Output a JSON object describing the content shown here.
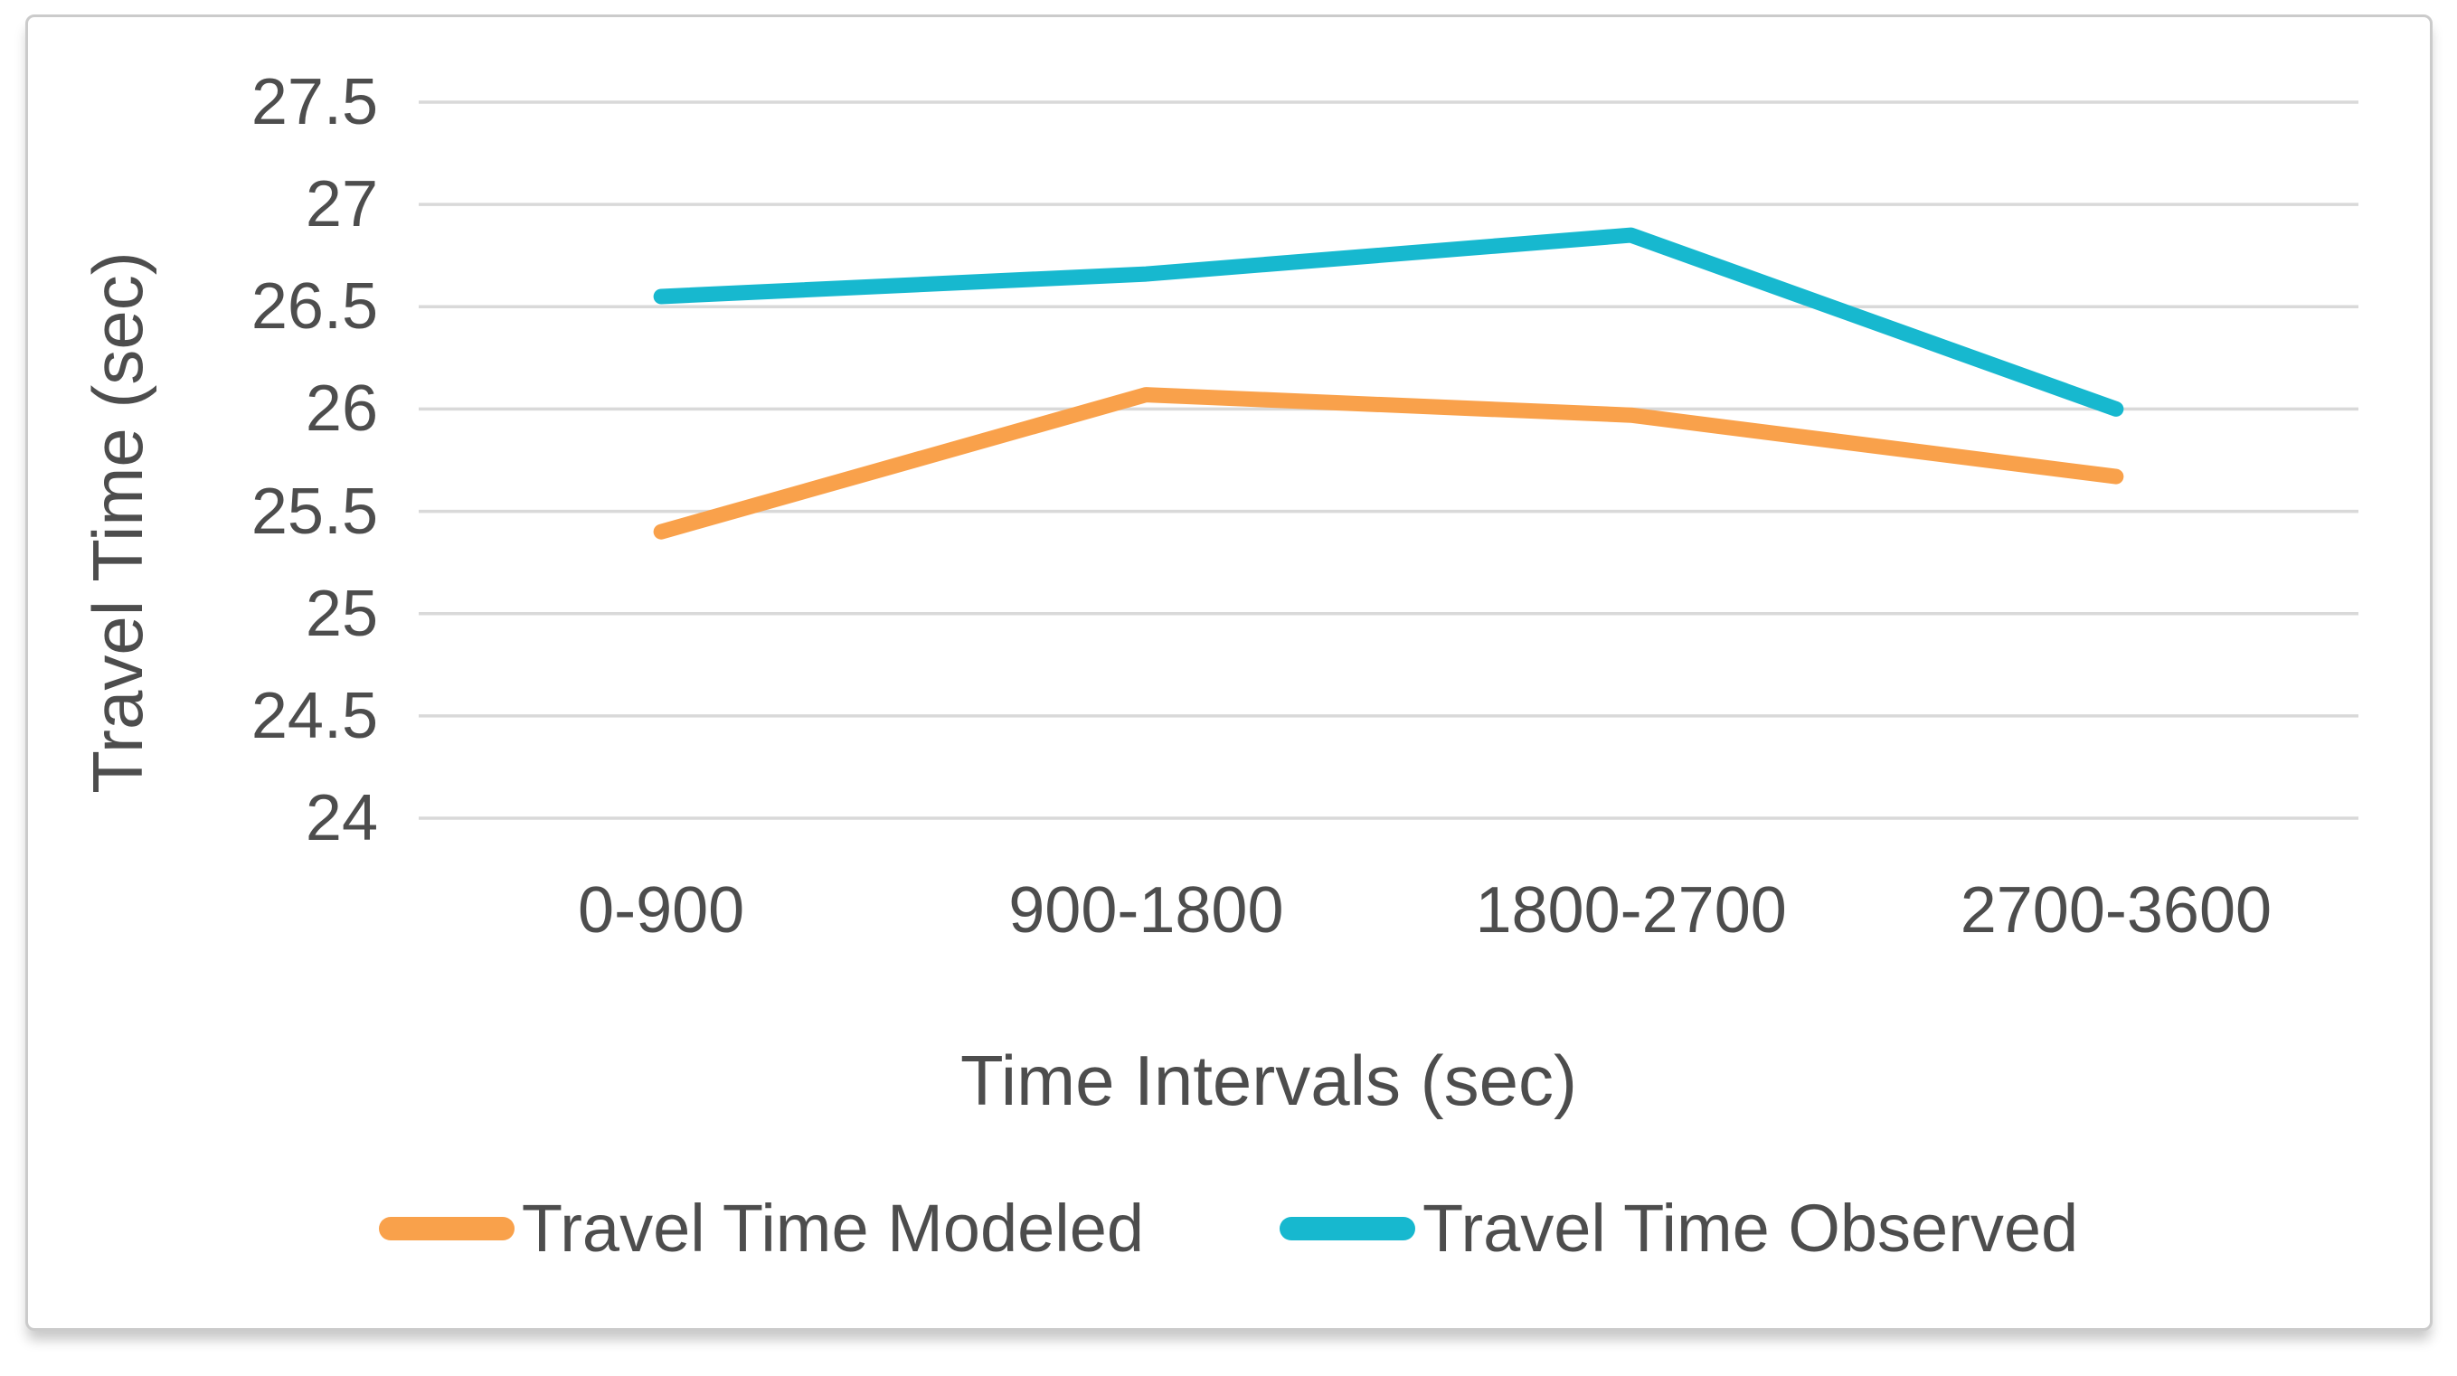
{
  "chart_data": {
    "type": "line",
    "categories": [
      "0-900",
      "900-1800",
      "1800-2700",
      "2700-3600"
    ],
    "series": [
      {
        "name": "Travel Time Modeled",
        "color": "#F9A14B",
        "values": [
          25.4,
          26.07,
          25.97,
          25.67
        ]
      },
      {
        "name": "Travel Time Observed",
        "color": "#17B8CF",
        "values": [
          26.55,
          26.66,
          26.85,
          26.0
        ]
      }
    ],
    "xlabel": "Time Intervals (sec)",
    "ylabel": "Travel Time (sec)",
    "ylim": [
      24,
      27.5
    ],
    "yticks": [
      "27.5",
      "27",
      "26.5",
      "26",
      "25.5",
      "25",
      "24.5",
      "24"
    ],
    "ytick_values": [
      27.5,
      27,
      26.5,
      26,
      25.5,
      25,
      24.5,
      24
    ],
    "grid": "horizontal",
    "legend_position": "bottom",
    "gridline_color": "#D9D9D9",
    "text_color": "#4D4D4D",
    "frame_border_color": "#CBCBCB"
  }
}
